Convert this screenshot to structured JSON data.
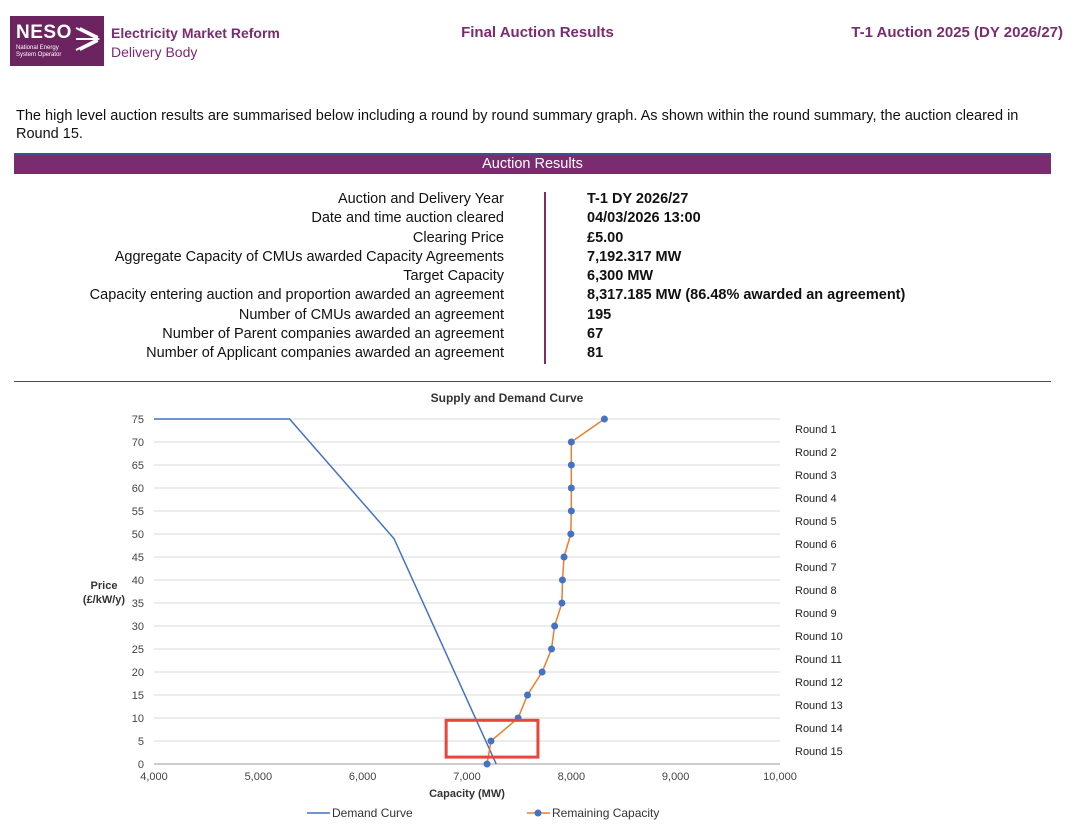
{
  "header": {
    "logo_text": "NESO",
    "logo_subtext": "National Energy System Operator",
    "org_line1": "Electricity Market Reform",
    "org_line2": "Delivery Body",
    "center_title": "Final Auction Results",
    "right_title": "T-1 Auction 2025 (DY 2026/27)"
  },
  "intro": "The high level auction results are summarised below including a round by round summary graph. As shown within the round summary, the auction cleared in Round 15.",
  "results": {
    "heading": "Auction Results",
    "rows": [
      {
        "label": "Auction and Delivery Year",
        "value": "T-1 DY 2026/27"
      },
      {
        "label": "Date and time auction cleared",
        "value": "04/03/2026 13:00"
      },
      {
        "label": "Clearing Price",
        "value": "£5.00"
      },
      {
        "label": "Aggregate Capacity of CMUs awarded Capacity Agreements",
        "value": "7,192.317 MW"
      },
      {
        "label": "Target Capacity",
        "value": "6,300 MW"
      },
      {
        "label": "Capacity entering auction and proportion awarded an agreement",
        "value": "8,317.185 MW (86.48% awarded an agreement)"
      },
      {
        "label": "Number of CMUs awarded an agreement",
        "value": "195"
      },
      {
        "label": "Number of Parent companies awarded an agreement",
        "value": "67"
      },
      {
        "label": "Number of Applicant companies awarded an agreement",
        "value": "81"
      }
    ]
  },
  "chart_data": {
    "type": "line",
    "title": "Supply and Demand Curve",
    "xlabel": "Capacity (MW)",
    "ylabel": "Price (£/kW/y)",
    "xlim": [
      4000,
      10000
    ],
    "ylim": [
      0,
      75
    ],
    "x_ticks": [
      "4,000",
      "5,000",
      "6,000",
      "7,000",
      "8,000",
      "9,000",
      "10,000"
    ],
    "y_ticks": [
      "0",
      "5",
      "10",
      "15",
      "20",
      "25",
      "30",
      "35",
      "40",
      "45",
      "50",
      "55",
      "60",
      "65",
      "70",
      "75"
    ],
    "grid": true,
    "legend": "bottom",
    "series": [
      {
        "name": "Demand Curve",
        "color": "#4472c4",
        "marker": "none",
        "points": [
          [
            4000,
            75
          ],
          [
            5300,
            75
          ],
          [
            6300,
            49
          ],
          [
            7280,
            0
          ]
        ]
      },
      {
        "name": "Remaining Capacity",
        "color": "#ed7d31",
        "marker_color": "#4472c4",
        "points": [
          [
            8317,
            75
          ],
          [
            8000,
            70
          ],
          [
            8000,
            65
          ],
          [
            8000,
            60
          ],
          [
            8000,
            55
          ],
          [
            7995,
            50
          ],
          [
            7930,
            45
          ],
          [
            7915,
            40
          ],
          [
            7910,
            35
          ],
          [
            7840,
            30
          ],
          [
            7810,
            25
          ],
          [
            7720,
            20
          ],
          [
            7580,
            15
          ],
          [
            7490,
            10
          ],
          [
            7230,
            5
          ],
          [
            7192,
            0
          ]
        ]
      }
    ],
    "round_labels": [
      "Round 1",
      "Round 2",
      "Round 3",
      "Round 4",
      "Round 5",
      "Round 6",
      "Round 7",
      "Round 8",
      "Round 9",
      "Round 10",
      "Round 11",
      "Round 12",
      "Round 13",
      "Round 14",
      "Round 15"
    ],
    "highlight_box": {
      "x_range": [
        6800,
        7680
      ],
      "y_range": [
        1.5,
        9.5
      ],
      "color": "#e8453c"
    }
  }
}
